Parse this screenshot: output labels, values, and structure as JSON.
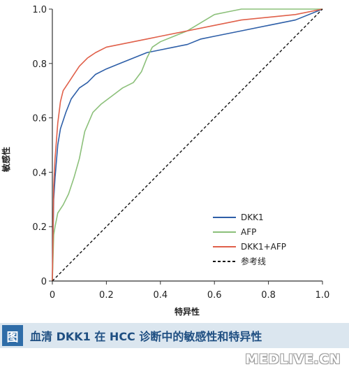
{
  "chart_data": {
    "type": "line",
    "xlabel": "特异性",
    "ylabel": "敏感性",
    "xlim": [
      0,
      1
    ],
    "ylim": [
      0,
      1
    ],
    "x_ticks": [
      "0",
      "0.2",
      "0.4",
      "0.6",
      "0.8",
      "1.0"
    ],
    "y_ticks": [
      "0",
      "0.2",
      "0.4",
      "0.6",
      "0.8",
      "1.0"
    ],
    "grid": false,
    "legend_position": "bottom-right",
    "series": [
      {
        "name": "DKK1",
        "color": "#2e5fa8",
        "style": "solid",
        "x": [
          0,
          0.005,
          0.01,
          0.02,
          0.03,
          0.05,
          0.07,
          0.1,
          0.13,
          0.16,
          0.2,
          0.25,
          0.3,
          0.35,
          0.4,
          0.45,
          0.5,
          0.55,
          0.6,
          0.7,
          0.8,
          0.9,
          1.0
        ],
        "y": [
          0,
          0.3,
          0.38,
          0.5,
          0.56,
          0.62,
          0.67,
          0.71,
          0.73,
          0.76,
          0.78,
          0.8,
          0.82,
          0.84,
          0.85,
          0.86,
          0.87,
          0.89,
          0.9,
          0.92,
          0.94,
          0.96,
          1.0
        ]
      },
      {
        "name": "AFP",
        "color": "#8cc07a",
        "style": "solid",
        "x": [
          0,
          0.005,
          0.01,
          0.02,
          0.04,
          0.06,
          0.08,
          0.1,
          0.12,
          0.15,
          0.18,
          0.22,
          0.26,
          0.3,
          0.33,
          0.35,
          0.37,
          0.4,
          0.45,
          0.5,
          0.55,
          0.6,
          0.65,
          0.7,
          1.0
        ],
        "y": [
          0,
          0.17,
          0.2,
          0.25,
          0.28,
          0.32,
          0.38,
          0.45,
          0.55,
          0.62,
          0.65,
          0.68,
          0.71,
          0.73,
          0.77,
          0.82,
          0.86,
          0.88,
          0.9,
          0.92,
          0.95,
          0.98,
          0.99,
          1.0,
          1.0
        ]
      },
      {
        "name": "DKK1+AFP",
        "color": "#e0604a",
        "style": "solid",
        "x": [
          0,
          0.005,
          0.01,
          0.02,
          0.03,
          0.04,
          0.06,
          0.08,
          0.1,
          0.13,
          0.16,
          0.2,
          0.25,
          0.3,
          0.35,
          0.4,
          0.5,
          0.6,
          0.7,
          0.8,
          0.9,
          1.0
        ],
        "y": [
          0,
          0.35,
          0.45,
          0.58,
          0.66,
          0.7,
          0.73,
          0.76,
          0.79,
          0.82,
          0.84,
          0.86,
          0.87,
          0.88,
          0.89,
          0.9,
          0.92,
          0.94,
          0.96,
          0.97,
          0.98,
          1.0
        ]
      },
      {
        "name": "参考线",
        "color": "#111111",
        "style": "dashed",
        "x": [
          0,
          1
        ],
        "y": [
          0,
          1
        ]
      }
    ]
  },
  "caption": {
    "badge": "图",
    "text": "血清 DKK1 在 HCC 诊断中的敏感性和特异性"
  },
  "watermark": "MEDLIVE.CN"
}
